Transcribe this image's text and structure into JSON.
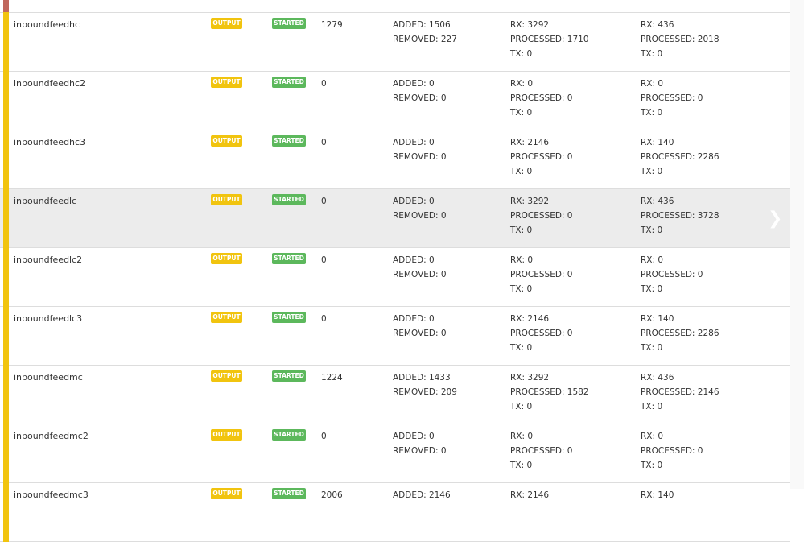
{
  "badges": {
    "output": "OUTPUT",
    "started": "STARTED"
  },
  "colors": {
    "row_bar": "#f1c40f",
    "prev_row_bar": "#c0675d",
    "output_badge": "#f1c40f",
    "started_badge": "#5cb85c",
    "highlight": "#ececec"
  },
  "rows": [
    {
      "name": "inboundfeedhc",
      "count": "1279",
      "added": "ADDED: 1506",
      "removed": "REMOVED: 227",
      "a_rx": "RX: 3292",
      "a_proc": "PROCESSED: 1710",
      "a_tx": "TX: 0",
      "b_rx": "RX: 436",
      "b_proc": "PROCESSED: 2018",
      "b_tx": "TX: 0"
    },
    {
      "name": "inboundfeedhc2",
      "count": "0",
      "added": "ADDED: 0",
      "removed": "REMOVED: 0",
      "a_rx": "RX: 0",
      "a_proc": "PROCESSED: 0",
      "a_tx": "TX: 0",
      "b_rx": "RX: 0",
      "b_proc": "PROCESSED: 0",
      "b_tx": "TX: 0"
    },
    {
      "name": "inboundfeedhc3",
      "count": "0",
      "added": "ADDED: 0",
      "removed": "REMOVED: 0",
      "a_rx": "RX: 2146",
      "a_proc": "PROCESSED: 0",
      "a_tx": "TX: 0",
      "b_rx": "RX: 140",
      "b_proc": "PROCESSED: 2286",
      "b_tx": "TX: 0"
    },
    {
      "name": "inboundfeedlc",
      "count": "0",
      "added": "ADDED: 0",
      "removed": "REMOVED: 0",
      "a_rx": "RX: 3292",
      "a_proc": "PROCESSED: 0",
      "a_tx": "TX: 0",
      "b_rx": "RX: 436",
      "b_proc": "PROCESSED: 3728",
      "b_tx": "TX: 0",
      "highlighted": true
    },
    {
      "name": "inboundfeedlc2",
      "count": "0",
      "added": "ADDED: 0",
      "removed": "REMOVED: 0",
      "a_rx": "RX: 0",
      "a_proc": "PROCESSED: 0",
      "a_tx": "TX: 0",
      "b_rx": "RX: 0",
      "b_proc": "PROCESSED: 0",
      "b_tx": "TX: 0"
    },
    {
      "name": "inboundfeedlc3",
      "count": "0",
      "added": "ADDED: 0",
      "removed": "REMOVED: 0",
      "a_rx": "RX: 2146",
      "a_proc": "PROCESSED: 0",
      "a_tx": "TX: 0",
      "b_rx": "RX: 140",
      "b_proc": "PROCESSED: 2286",
      "b_tx": "TX: 0"
    },
    {
      "name": "inboundfeedmc",
      "count": "1224",
      "added": "ADDED: 1433",
      "removed": "REMOVED: 209",
      "a_rx": "RX: 3292",
      "a_proc": "PROCESSED: 1582",
      "a_tx": "TX: 0",
      "b_rx": "RX: 436",
      "b_proc": "PROCESSED: 2146",
      "b_tx": "TX: 0"
    },
    {
      "name": "inboundfeedmc2",
      "count": "0",
      "added": "ADDED: 0",
      "removed": "REMOVED: 0",
      "a_rx": "RX: 0",
      "a_proc": "PROCESSED: 0",
      "a_tx": "TX: 0",
      "b_rx": "RX: 0",
      "b_proc": "PROCESSED: 0",
      "b_tx": "TX: 0"
    },
    {
      "name": "inboundfeedmc3",
      "count": "2006",
      "added": "ADDED: 2146",
      "removed": "",
      "a_rx": "RX: 2146",
      "a_proc": "",
      "a_tx": "",
      "b_rx": "RX: 140",
      "b_proc": "",
      "b_tx": ""
    }
  ]
}
